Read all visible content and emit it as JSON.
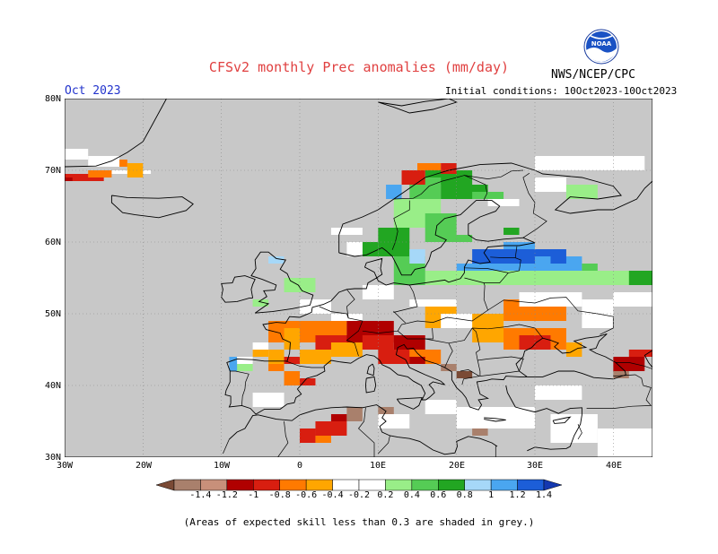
{
  "header": {
    "title": "CFSv2 monthly Prec anomalies (mm/day)",
    "month": "Oct 2023",
    "agency": "NWS/NCEP/CPC",
    "initial_conditions": "Initial conditions: 10Oct2023-10Oct2023",
    "logo_text": "NOAA"
  },
  "map": {
    "region": "Europe",
    "lat_ticks": [
      "80N",
      "70N",
      "60N",
      "50N",
      "40N",
      "30N"
    ],
    "lon_ticks": [
      "30W",
      "20W",
      "10W",
      "0",
      "10E",
      "20E",
      "30E",
      "40E"
    ],
    "colors": {
      "ocean_and_land_low_skill": "#c8c8c8",
      "no_anomaly": "#ffffff",
      "coast": "#000000"
    }
  },
  "legend": {
    "labels": [
      "-1.4",
      "-1.2",
      "-1",
      "-0.8",
      "-0.6",
      "-0.4",
      "-0.2",
      "0.2",
      "0.4",
      "0.6",
      "0.8",
      "1",
      "1.2",
      "1.4"
    ],
    "colors": [
      "#7a4a35",
      "#a9806c",
      "#d9b4a2",
      "#c00000",
      "#e02a1a",
      "#ff6a00",
      "#ffa200",
      "#ffffff",
      "#97f07a",
      "#58d150",
      "#1aa61a",
      "#a5d6f7",
      "#49a8f0",
      "#1858d8",
      "#1438b0"
    ]
  },
  "footnote": "(Areas of expected skill less than 0.3 are shaded in grey.)"
}
